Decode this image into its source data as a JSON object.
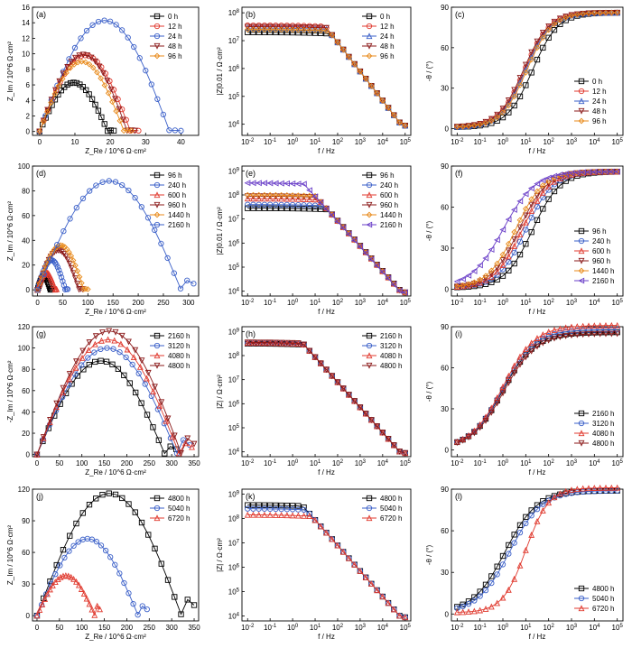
{
  "figure": {
    "series_colors": {
      "0 h": "#000000",
      "12 h": "#e03a2f",
      "24 h": "#3a5fc8",
      "48 h": "#8b1a1a",
      "96 h": "#e88a1a",
      "96 h b": "#000000",
      "240 h": "#3a5fc8",
      "600 h": "#e03a2f",
      "960 h": "#8b1a1a",
      "1440 h": "#e88a1a",
      "2160 h": "#6a3fc8",
      "2160 h c": "#000000",
      "3120 h": "#3a5fc8",
      "4080 h": "#e03a2f",
      "4800 h": "#8b1a1a",
      "4800 h d": "#000000",
      "5040 h": "#3a5fc8",
      "6720 h": "#e03a2f"
    }
  },
  "chart_data": [
    {
      "panel": "(a)",
      "type": "scatter",
      "xlabel": "Z_Re / 10^6 Ω·cm²",
      "ylabel": "Z_Im / 10^6 Ω·cm²",
      "xlim": [
        -2,
        45
      ],
      "ylim": [
        -0.5,
        16
      ],
      "xticks": [
        0,
        10,
        20,
        30,
        40
      ],
      "yticks": [
        0,
        2,
        4,
        6,
        8,
        10,
        12,
        14,
        16
      ],
      "series": [
        {
          "name": "0 h",
          "marker": "square",
          "color": "#000000",
          "arc": [
            0,
            21,
            6.3,
            0.2
          ]
        },
        {
          "name": "12 h",
          "marker": "circle",
          "color": "#e03a2f",
          "arc": [
            0,
            28,
            9.8,
            0.2
          ]
        },
        {
          "name": "24 h",
          "marker": "circle",
          "color": "#3a5fc8",
          "arc": [
            0,
            40,
            14.3,
            0.2
          ]
        },
        {
          "name": "48 h",
          "marker": "triangle-down",
          "color": "#8b1a1a",
          "arc": [
            0,
            27,
            9.9,
            0.2
          ]
        },
        {
          "name": "96 h",
          "marker": "diamond",
          "color": "#e88a1a",
          "arc": [
            0,
            26,
            9.0,
            0.2
          ]
        }
      ]
    },
    {
      "panel": "(b)",
      "type": "line",
      "log_x": true,
      "log_y": true,
      "xlabel": "f / Hz",
      "ylabel": "|Z|0.01 / Ω·cm²",
      "xlim_exp": [
        -2,
        5
      ],
      "ylim_exp": [
        3.6,
        8.2
      ],
      "yticks_exp": [
        4,
        5,
        6,
        7,
        8
      ],
      "series": [
        {
          "name": "0 h",
          "marker": "square",
          "color": "#000000",
          "bode": [
            7.3,
            0.9,
            4.0
          ]
        },
        {
          "name": "12 h",
          "marker": "circle",
          "color": "#e03a2f",
          "bode": [
            7.55,
            0.85,
            4.0
          ]
        },
        {
          "name": "24 h",
          "marker": "triangle-up",
          "color": "#3a5fc8",
          "bode": [
            7.45,
            0.85,
            4.0
          ]
        },
        {
          "name": "48 h",
          "marker": "triangle-down",
          "color": "#8b1a1a",
          "bode": [
            7.5,
            0.85,
            4.0
          ]
        },
        {
          "name": "96 h",
          "marker": "diamond",
          "color": "#e88a1a",
          "bode": [
            7.4,
            0.85,
            4.0
          ]
        }
      ]
    },
    {
      "panel": "(c)",
      "type": "line",
      "log_x": true,
      "xlabel": "f / Hz",
      "ylabel": "-θ / (°)",
      "xlim_exp": [
        -2,
        5
      ],
      "ylim": [
        -5,
        90
      ],
      "yticks": [
        0,
        30,
        60,
        90
      ],
      "series": [
        {
          "name": "0 h",
          "marker": "square",
          "color": "#000000",
          "phase": [
            1.3,
            0.55,
            85
          ]
        },
        {
          "name": "12 h",
          "marker": "circle",
          "color": "#e03a2f",
          "phase": [
            0.95,
            0.55,
            85
          ]
        },
        {
          "name": "24 h",
          "marker": "triangle-up",
          "color": "#3a5fc8",
          "phase": [
            1.0,
            0.55,
            85
          ]
        },
        {
          "name": "48 h",
          "marker": "triangle-down",
          "color": "#8b1a1a",
          "phase": [
            0.9,
            0.55,
            85
          ]
        },
        {
          "name": "96 h",
          "marker": "diamond",
          "color": "#e88a1a",
          "phase": [
            1.05,
            0.55,
            85
          ]
        }
      ]
    },
    {
      "panel": "(d)",
      "type": "scatter",
      "xlabel": "Z_Re / 10^6 Ω·cm²",
      "ylabel": "Z_Im / 10^6 Ω·cm²",
      "xlim": [
        -10,
        320
      ],
      "ylim": [
        -5,
        100
      ],
      "xticks": [
        0,
        50,
        100,
        150,
        200,
        250,
        300
      ],
      "yticks": [
        0,
        20,
        40,
        60,
        80,
        100
      ],
      "series": [
        {
          "name": "96 h",
          "marker": "square",
          "color": "#000000",
          "arc": [
            0,
            28,
            11,
            1
          ]
        },
        {
          "name": "240 h",
          "marker": "circle",
          "color": "#3a5fc8",
          "arc": [
            0,
            60,
            24,
            1
          ]
        },
        {
          "name": "600 h",
          "marker": "triangle-up",
          "color": "#e03a2f",
          "arc": [
            0,
            38,
            14,
            1
          ]
        },
        {
          "name": "960 h",
          "marker": "triangle-down",
          "color": "#8b1a1a",
          "arc": [
            0,
            90,
            32,
            1
          ]
        },
        {
          "name": "1440 h",
          "marker": "diamond",
          "color": "#e88a1a",
          "arc": [
            0,
            100,
            36,
            1
          ]
        },
        {
          "name": "2160 h",
          "marker": "circle",
          "color": "#3a5fc8",
          "arc": [
            0,
            310,
            88,
            10
          ]
        }
      ]
    },
    {
      "panel": "(e)",
      "type": "line",
      "log_x": true,
      "log_y": true,
      "xlabel": "f / Hz",
      "ylabel": "|Z|0.01 / Ω·cm²",
      "xlim_exp": [
        -2,
        5
      ],
      "ylim_exp": [
        3.8,
        9.2
      ],
      "yticks_exp": [
        4,
        5,
        6,
        7,
        8,
        9
      ],
      "series": [
        {
          "name": "96 h",
          "marker": "square",
          "color": "#000000",
          "bode": [
            7.45,
            0.7,
            4.0
          ]
        },
        {
          "name": "240 h",
          "marker": "circle",
          "color": "#3a5fc8",
          "bode": [
            7.6,
            0.6,
            4.0
          ]
        },
        {
          "name": "600 h",
          "marker": "triangle-up",
          "color": "#e03a2f",
          "bode": [
            7.85,
            0.45,
            4.0
          ]
        },
        {
          "name": "960 h",
          "marker": "triangle-down",
          "color": "#8b1a1a",
          "bode": [
            7.95,
            0.35,
            4.0
          ]
        },
        {
          "name": "1440 h",
          "marker": "diamond",
          "color": "#e88a1a",
          "bode": [
            8.0,
            0.3,
            4.0
          ]
        },
        {
          "name": "2160 h",
          "marker": "triangle-left",
          "color": "#6a3fc8",
          "bode": [
            8.5,
            -0.2,
            4.0
          ]
        }
      ]
    },
    {
      "panel": "(f)",
      "type": "line",
      "log_x": true,
      "xlabel": "f / Hz",
      "ylabel": "-θ / (°)",
      "xlim_exp": [
        -2,
        5
      ],
      "ylim": [
        -5,
        90
      ],
      "yticks": [
        0,
        30,
        60,
        90
      ],
      "series": [
        {
          "name": "96 h",
          "marker": "square",
          "color": "#000000",
          "phase": [
            1.3,
            0.6,
            85
          ]
        },
        {
          "name": "240 h",
          "marker": "circle",
          "color": "#3a5fc8",
          "phase": [
            1.0,
            0.6,
            85
          ]
        },
        {
          "name": "600 h",
          "marker": "triangle-up",
          "color": "#e03a2f",
          "phase": [
            0.85,
            0.6,
            85
          ]
        },
        {
          "name": "960 h",
          "marker": "triangle-down",
          "color": "#8b1a1a",
          "phase": [
            0.7,
            0.6,
            85
          ]
        },
        {
          "name": "1440 h",
          "marker": "diamond",
          "color": "#e88a1a",
          "phase": [
            0.55,
            0.6,
            85
          ]
        },
        {
          "name": "2160 h",
          "marker": "triangle-left",
          "color": "#6a3fc8",
          "phase": [
            0.0,
            0.7,
            85
          ]
        }
      ]
    },
    {
      "panel": "(g)",
      "type": "scatter",
      "xlabel": "Z_Re / 10^6 Ω·cm²",
      "ylabel": "-Z_Im / 10^6 Ω·cm²",
      "xlim": [
        -10,
        360
      ],
      "ylim": [
        -2,
        120
      ],
      "xticks": [
        0,
        50,
        100,
        150,
        200,
        250,
        300,
        350
      ],
      "yticks": [
        0,
        20,
        40,
        60,
        80,
        100,
        120
      ],
      "series": [
        {
          "name": "2160 h",
          "marker": "square",
          "color": "#000000",
          "arc": [
            0,
            310,
            88,
            10
          ]
        },
        {
          "name": "3120 h",
          "marker": "circle",
          "color": "#3a5fc8",
          "arc": [
            0,
            340,
            100,
            18
          ]
        },
        {
          "name": "4080 h",
          "marker": "triangle-up",
          "color": "#e03a2f",
          "arc": [
            0,
            345,
            108,
            14
          ]
        },
        {
          "name": "4800 h",
          "marker": "triangle-down",
          "color": "#8b1a1a",
          "arc": [
            0,
            350,
            116,
            20
          ]
        }
      ]
    },
    {
      "panel": "(h)",
      "type": "line",
      "log_x": true,
      "log_y": true,
      "xlabel": "f / Hz",
      "ylabel": "|Z| / Ω·cm²",
      "xlim_exp": [
        -2,
        5
      ],
      "ylim_exp": [
        3.8,
        9.2
      ],
      "yticks_exp": [
        4,
        5,
        6,
        7,
        8,
        9
      ],
      "series": [
        {
          "name": "2160 h",
          "marker": "square",
          "color": "#000000",
          "bode": [
            8.5,
            -0.15,
            4.0
          ]
        },
        {
          "name": "3120 h",
          "marker": "circle",
          "color": "#3a5fc8",
          "bode": [
            8.52,
            -0.15,
            4.0
          ]
        },
        {
          "name": "4080 h",
          "marker": "triangle-up",
          "color": "#e03a2f",
          "bode": [
            8.53,
            -0.15,
            4.0
          ]
        },
        {
          "name": "4800 h",
          "marker": "triangle-down",
          "color": "#8b1a1a",
          "bode": [
            8.55,
            -0.15,
            4.0
          ]
        }
      ]
    },
    {
      "panel": "(i)",
      "type": "line",
      "log_x": true,
      "xlabel": "f / Hz",
      "ylabel": "-θ / (°)",
      "xlim_exp": [
        -2,
        5
      ],
      "ylim": [
        -5,
        90
      ],
      "yticks": [
        0,
        30,
        60,
        90
      ],
      "series": [
        {
          "name": "2160 h",
          "marker": "square",
          "color": "#000000",
          "phase": [
            0.0,
            0.7,
            85
          ]
        },
        {
          "name": "3120 h",
          "marker": "circle",
          "color": "#3a5fc8",
          "phase": [
            0.0,
            0.7,
            87
          ]
        },
        {
          "name": "4080 h",
          "marker": "triangle-up",
          "color": "#e03a2f",
          "phase": [
            0.0,
            0.7,
            90
          ]
        },
        {
          "name": "4800 h",
          "marker": "triangle-down",
          "color": "#8b1a1a",
          "phase": [
            0.05,
            0.7,
            84
          ]
        }
      ]
    },
    {
      "panel": "(j)",
      "type": "scatter",
      "xlabel": "Z_Re / 10^6 Ω·cm²",
      "ylabel": "Z_Im / 10^6 Ω·cm²",
      "xlim": [
        -10,
        360
      ],
      "ylim": [
        -5,
        120
      ],
      "xticks": [
        0,
        50,
        100,
        150,
        200,
        250,
        300,
        350
      ],
      "yticks": [
        0,
        30,
        60,
        90,
        120
      ],
      "series": [
        {
          "name": "4800 h",
          "marker": "square",
          "color": "#000000",
          "arc": [
            0,
            350,
            116,
            20
          ]
        },
        {
          "name": "5040 h",
          "marker": "circle",
          "color": "#3a5fc8",
          "arc": [
            0,
            245,
            73,
            12
          ]
        },
        {
          "name": "6720 h",
          "marker": "triangle-up",
          "color": "#e03a2f",
          "arc": [
            0,
            140,
            38,
            12
          ]
        }
      ]
    },
    {
      "panel": "(k)",
      "type": "line",
      "log_x": true,
      "log_y": true,
      "xlabel": "f / Hz",
      "ylabel": "|Z| / Ω·cm²",
      "xlim_exp": [
        -2,
        5
      ],
      "ylim_exp": [
        3.8,
        9.2
      ],
      "yticks_exp": [
        4,
        5,
        6,
        7,
        8,
        9
      ],
      "series": [
        {
          "name": "4800 h",
          "marker": "square",
          "color": "#000000",
          "bode": [
            8.55,
            -0.2,
            4.0
          ]
        },
        {
          "name": "5040 h",
          "marker": "circle",
          "color": "#3a5fc8",
          "bode": [
            8.4,
            -0.2,
            4.0
          ]
        },
        {
          "name": "6720 h",
          "marker": "triangle-up",
          "color": "#e03a2f",
          "bode": [
            8.15,
            -0.2,
            4.0
          ]
        }
      ]
    },
    {
      "panel": "(l)",
      "type": "line",
      "log_x": true,
      "xlabel": "f / Hz",
      "ylabel": "-θ / (°)",
      "xlim_exp": [
        -2,
        5
      ],
      "ylim": [
        -5,
        90
      ],
      "yticks": [
        0,
        30,
        60,
        90
      ],
      "series": [
        {
          "name": "4800 h",
          "marker": "square",
          "color": "#000000",
          "phase": [
            0.1,
            0.7,
            88
          ]
        },
        {
          "name": "5040 h",
          "marker": "circle",
          "color": "#3a5fc8",
          "phase": [
            0.3,
            0.7,
            88
          ]
        },
        {
          "name": "6720 h",
          "marker": "triangle-up",
          "color": "#e03a2f",
          "phase": [
            1.0,
            0.5,
            90
          ]
        }
      ]
    }
  ]
}
